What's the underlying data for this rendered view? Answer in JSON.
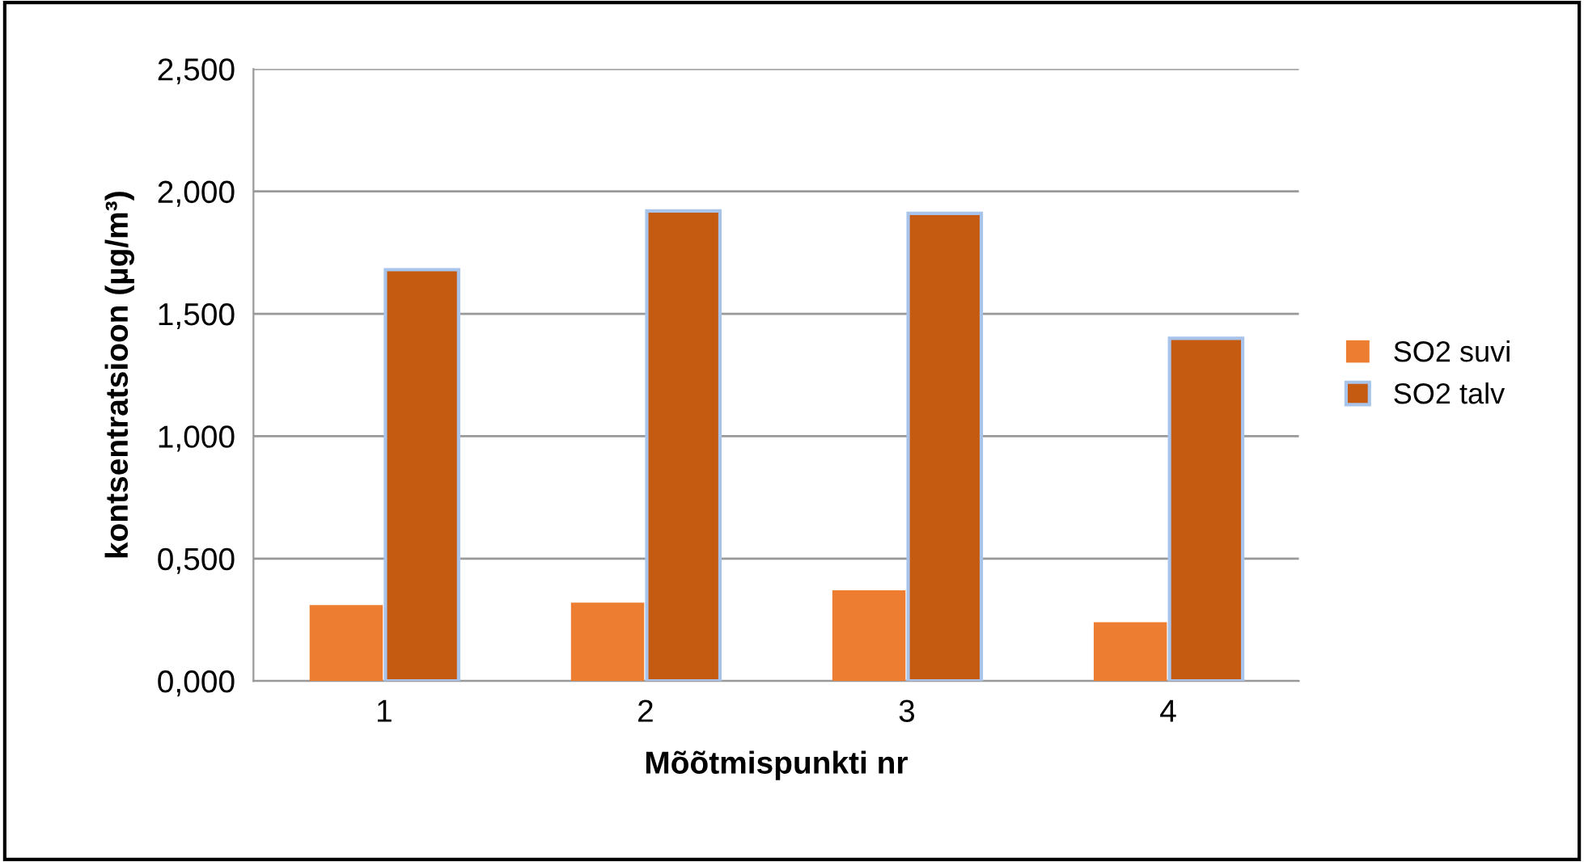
{
  "chart_data": {
    "type": "bar",
    "xlabel": "Mõõtmispunkti nr",
    "ylabel": "kontsentratsioon (µg/m³)",
    "categories": [
      "1",
      "2",
      "3",
      "4"
    ],
    "series": [
      {
        "name": "SO2 suvi",
        "color": "#ed7d31",
        "values": [
          0.31,
          0.32,
          0.37,
          0.24
        ]
      },
      {
        "name": "SO2 talv",
        "color": "#c55a11",
        "values": [
          1.68,
          1.92,
          1.91,
          1.4
        ]
      }
    ],
    "ylim": [
      0,
      2.5
    ],
    "yticks": [
      {
        "value": 0,
        "label": "0,000"
      },
      {
        "value": 0.5,
        "label": "0,500"
      },
      {
        "value": 1,
        "label": "1,000"
      },
      {
        "value": 1.5,
        "label": "1,500"
      },
      {
        "value": 2,
        "label": "2,000"
      },
      {
        "value": 2.5,
        "label": "2,500"
      }
    ],
    "grid": "y",
    "legend": "right"
  }
}
